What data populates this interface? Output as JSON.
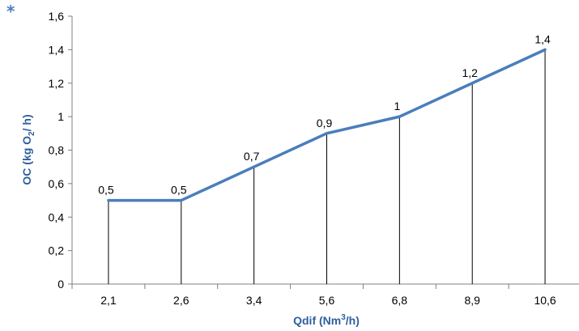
{
  "corner_mark": "*",
  "colors": {
    "series": "#4a7ebb",
    "axis_title": "#2e5f9e",
    "text": "#000000",
    "grid": "#7f7f7f"
  },
  "chart_data": {
    "type": "line",
    "categories": [
      "2,1",
      "2,6",
      "3,4",
      "5,6",
      "6,8",
      "8,9",
      "10,6"
    ],
    "series": [
      {
        "values": [
          0.5,
          0.5,
          0.7,
          0.9,
          1.0,
          1.2,
          1.4
        ]
      }
    ],
    "data_labels": [
      "0,5",
      "0,5",
      "0,7",
      "0,9",
      "1",
      "1,2",
      "1,4"
    ],
    "drop_lines": true,
    "grid": false,
    "ylim": [
      0,
      1.6
    ],
    "yticks": [
      0,
      0.2,
      0.4,
      0.6,
      0.8,
      1.0,
      1.2,
      1.4,
      1.6
    ],
    "ytick_labels": [
      "0",
      "0,2",
      "0,4",
      "0,6",
      "0,8",
      "1",
      "1,2",
      "1,4",
      "1,6"
    ],
    "xlabel": {
      "main": "Qdif (Nm",
      "sup": "3",
      "tail": "/h)"
    },
    "ylabel": {
      "main": "OC (kg O",
      "sub": "2",
      "tail": "/ h)"
    }
  }
}
